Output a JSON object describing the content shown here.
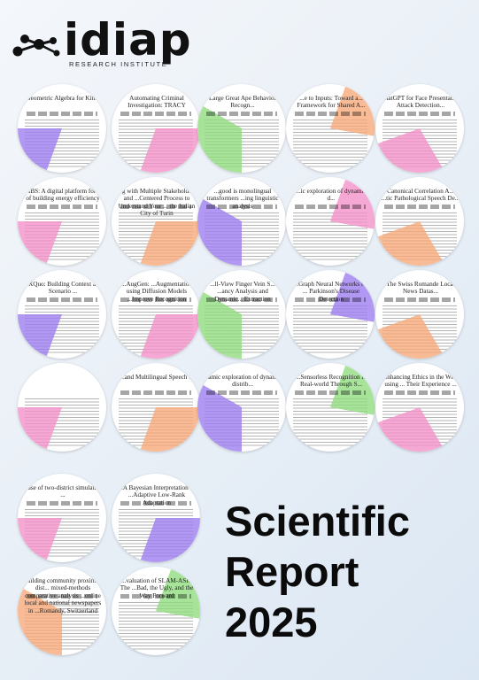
{
  "logo": {
    "wordmark": "idiap",
    "subtitle": "RESEARCH INSTITUTE",
    "icon": "molecule-icon"
  },
  "title": {
    "line1": "Scientific",
    "line2": "Report",
    "line3": "2025"
  },
  "colors": {
    "pink": "#f48fc8",
    "purple": "#9b7bf0",
    "green": "#8edc7c",
    "orange": "#f6a877"
  },
  "papers": [
    {
      "title": "Geometric Algebra for Kin...",
      "color": "purple"
    },
    {
      "title": "Automating Criminal Investigation: TRACY",
      "color": "pink"
    },
    {
      "title": "Large Great Ape Behavior Recogn...",
      "color": "green"
    },
    {
      "title": "...e to Inputs: Toward a... Framework for Shared A...",
      "color": "orange"
    },
    {
      "title": "ChatGPT for Face Presentation Attack Detection...",
      "color": "pink"
    },
    {
      "title": "...IBS: A digital platform for ... of building energy efficiency",
      "color": "pink"
    },
    {
      "title": "...g with Multiple Stakeholders and ...Centered Process to Understand Your ... the Italian City of Turin",
      "color": "orange"
    },
    {
      "title": "...good is monolingual transformers ...ing linguistic analysis",
      "color": "purple"
    },
    {
      "title": "...ic exploration of dynamic d...",
      "color": "pink"
    },
    {
      "title": "Canonical Correlation A... ...tic Pathological Speech De...",
      "color": "orange"
    },
    {
      "title": "...XQuo: Building Context and Scenario ...",
      "color": "purple"
    },
    {
      "title": "...AugGen: ...Augmentation using Diffusion Models ...Improve Recognition",
      "color": "pink"
    },
    {
      "title": "...ll-View Finger Vein S... ...ancy Analysis and Dynamic... Extraction",
      "color": "green"
    },
    {
      "title": "...Graph Neural Networks for ... Parkinson's Disease Detection",
      "color": "purple"
    },
    {
      "title": "The Swiss Romande Local News Datas...",
      "color": "orange"
    },
    {
      "title": "",
      "color": "pink"
    },
    {
      "title": "...and Multilingual Speech ...",
      "color": "orange"
    },
    {
      "title": "...amic exploration of dynamic distrib...",
      "color": "purple"
    },
    {
      "title": "...Sensorless Recognition in Real-world Through S...",
      "color": "green"
    },
    {
      "title": "Enhancing Ethics in the Wild using ... Their Experience ...",
      "color": "pink"
    },
    {
      "title": "...ase of two-district simulation ...",
      "color": "pink"
    },
    {
      "title": "...A Bayesian Interpretation of ...Adaptive Low-Rank Adaptation",
      "color": "purple"
    },
    {
      "title": "Building community proximity dist... mixed-methods comparative analysis ...online local and national newspapers in ...Romandy, Switzerland",
      "color": "orange"
    },
    {
      "title": "...valuation of SLAM-ASR: The ...Bad, the Ugly, and the Way Forward",
      "color": "green"
    }
  ]
}
